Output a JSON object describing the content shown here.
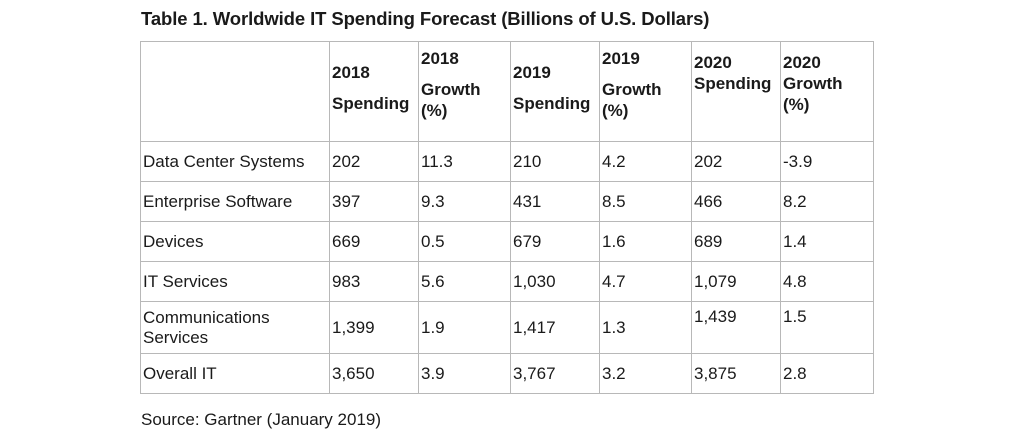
{
  "title": "Table 1. Worldwide IT Spending Forecast (Billions of U.S. Dollars)",
  "headers": {
    "c1_l1": "2018",
    "c1_l2": "Spending",
    "c2_l1": "2018",
    "c2_l2": "Growth",
    "c2_l3": "(%)",
    "c3_l1": "2019",
    "c3_l2": "Spending",
    "c4_l1": "2019",
    "c4_l2": "Growth",
    "c4_l3": "(%)",
    "c5_l1": "2020",
    "c5_l2": "Spending",
    "c6_l1": "2020",
    "c6_l2": "Growth",
    "c6_l3": "(%)"
  },
  "rows": [
    {
      "label": "Data Center Systems",
      "s2018": "202",
      "g2018": "11.3",
      "s2019": "210",
      "g2019": "4.2",
      "s2020": "202",
      "g2020": "-3.9"
    },
    {
      "label": "Enterprise Software",
      "s2018": "397",
      "g2018": "9.3",
      "s2019": "431",
      "g2019": "8.5",
      "s2020": "466",
      "g2020": "8.2"
    },
    {
      "label": "Devices",
      "s2018": "669",
      "g2018": "0.5",
      "s2019": "679",
      "g2019": "1.6",
      "s2020": "689",
      "g2020": "1.4"
    },
    {
      "label": "IT Services",
      "s2018": "983",
      "g2018": "5.6",
      "s2019": "1,030",
      "g2019": "4.7",
      "s2020": "1,079",
      "g2020": "4.8"
    },
    {
      "label_l1": "Communications",
      "label_l2": "Services",
      "s2018": "1,399",
      "g2018": "1.9",
      "s2019": "1,417",
      "g2019": "1.3",
      "s2020": "1,439",
      "g2020": "1.5"
    },
    {
      "label": "Overall IT",
      "s2018": "3,650",
      "g2018": "3.9",
      "s2019": "3,767",
      "g2019": "3.2",
      "s2020": "3,875",
      "g2020": "2.8"
    }
  ],
  "source": "Source: Gartner (January 2019)"
}
